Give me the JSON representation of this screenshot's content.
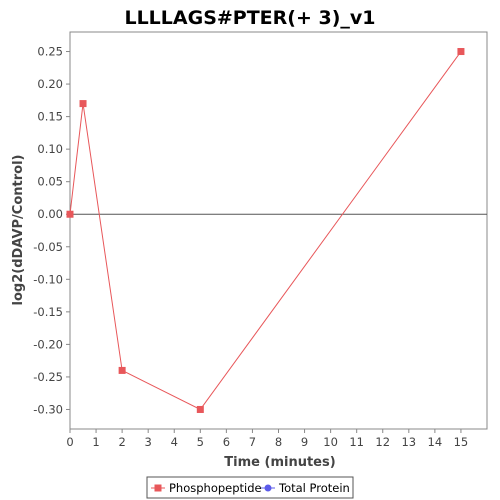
{
  "chart_data": {
    "type": "line",
    "title": "LLLLAGS#PTER(+ 3)_v1",
    "xlabel": "Time (minutes)",
    "ylabel": "log2(dDAVP/Control)",
    "xlim": [
      0,
      16
    ],
    "ylim": [
      -0.33,
      0.28
    ],
    "xticks": [
      0,
      1,
      2,
      3,
      4,
      5,
      6,
      7,
      8,
      9,
      10,
      11,
      12,
      13,
      14,
      15
    ],
    "yticks": [
      -0.3,
      -0.25,
      -0.2,
      -0.15,
      -0.1,
      -0.05,
      0.0,
      0.05,
      0.1,
      0.15,
      0.2,
      0.25
    ],
    "ytick_labels": [
      "-0.30",
      "-0.25",
      "-0.20",
      "-0.15",
      "-0.10",
      "-0.05",
      "0.00",
      "0.05",
      "0.10",
      "0.15",
      "0.20",
      "0.25"
    ],
    "grid": false,
    "zero_line": true,
    "legend_position": "bottom",
    "series": [
      {
        "name": "Phosphopeptide",
        "color": "#e8575a",
        "marker": "square",
        "x": [
          0,
          0.5,
          2,
          5,
          15
        ],
        "y": [
          0.0,
          0.17,
          -0.24,
          -0.3,
          0.25
        ]
      },
      {
        "name": "Total Protein",
        "color": "#5b5bea",
        "marker": "circle",
        "x": [],
        "y": []
      }
    ]
  }
}
